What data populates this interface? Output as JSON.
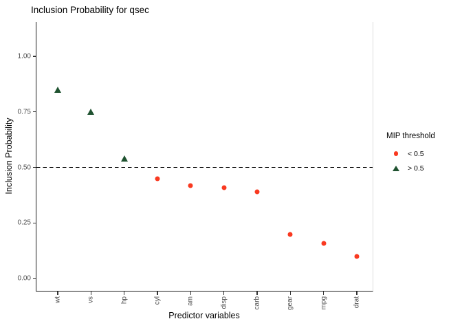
{
  "chart_data": {
    "type": "scatter",
    "title": "Inclusion Probability for qsec",
    "xlabel": "Predictor variables",
    "ylabel": "Inclusion Probability",
    "categories": [
      "wt",
      "vs",
      "hp",
      "cyl",
      "am",
      "disp",
      "carb",
      "gear",
      "mpg",
      "drat"
    ],
    "values": [
      0.85,
      0.75,
      0.54,
      0.45,
      0.42,
      0.41,
      0.39,
      0.2,
      0.16,
      0.1
    ],
    "point_groups": [
      "> 0.5",
      "> 0.5",
      "> 0.5",
      "< 0.5",
      "< 0.5",
      "< 0.5",
      "< 0.5",
      "< 0.5",
      "< 0.5",
      "< 0.5"
    ],
    "threshold": 0.5,
    "threshold_line": {
      "value": 0.5,
      "style": "dashed",
      "color": "#000000"
    },
    "ylim": [
      -0.055,
      1.155
    ],
    "yticks": [
      {
        "value": 0.0,
        "label": "0.00"
      },
      {
        "value": 0.25,
        "label": "0.25"
      },
      {
        "value": 0.5,
        "label": "0.50"
      },
      {
        "value": 0.75,
        "label": "0.75"
      },
      {
        "value": 1.0,
        "label": "1.00"
      }
    ],
    "grid": false,
    "legend": {
      "title": "MIP threshold",
      "position": "right",
      "items": [
        {
          "label": "< 0.5",
          "marker": "circle",
          "color": "#F93920"
        },
        {
          "label": "> 0.5",
          "marker": "triangle",
          "color": "#1F5230"
        }
      ]
    },
    "colors": {
      "point_below": "#F93920",
      "point_above": "#1F5230",
      "axis_line": "#1A1A1A",
      "tick_text": "#4D4D4D",
      "panel_right_border": "#DCDCDC",
      "background": "#FFFFFF"
    }
  }
}
